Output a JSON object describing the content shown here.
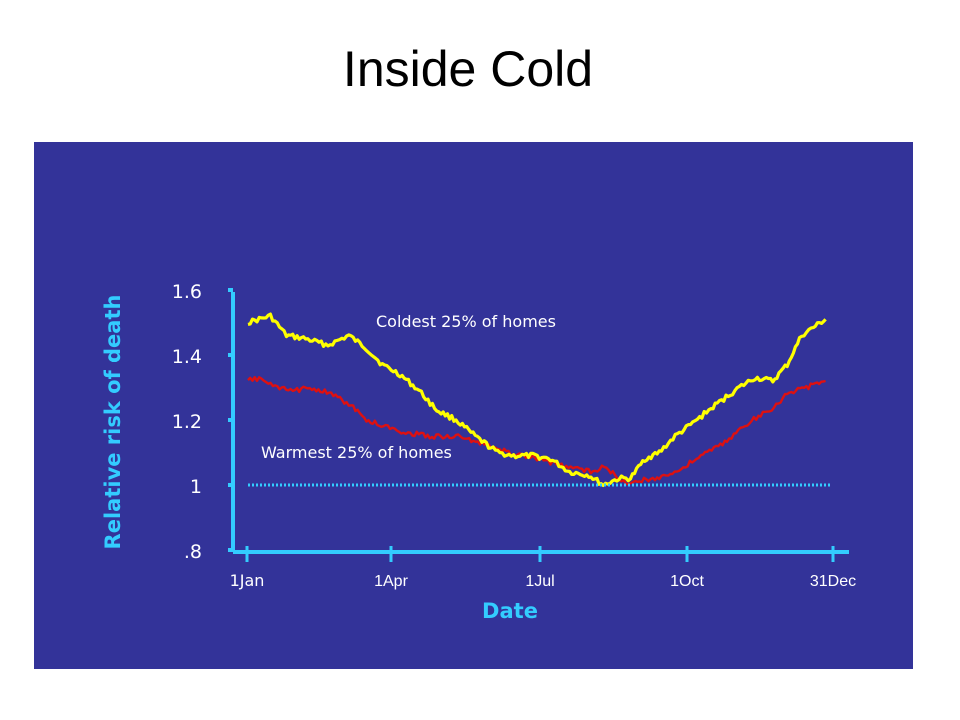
{
  "slide": {
    "title": "Inside Cold"
  },
  "colors": {
    "panel_bg": "#333399",
    "axis": "#33ccff",
    "coldest": "#ffff00",
    "warmest": "#dd1111",
    "baseline": "#33ccff",
    "text": "#ffffff"
  },
  "chart_data": {
    "type": "line",
    "title": "",
    "xlabel": "Date",
    "ylabel": "Relative risk of death",
    "ylim": [
      0.8,
      1.6
    ],
    "y_ticks": [
      0.8,
      1.0,
      1.2,
      1.4,
      1.6
    ],
    "y_tick_labels": [
      ".8",
      "1",
      "1.2",
      "1.4",
      "1.6"
    ],
    "x_ticks": [
      "2000-01-01",
      "2000-04-01",
      "2000-07-01",
      "2000-10-01",
      "2000-12-31"
    ],
    "x_tick_labels": [
      "1Jan",
      "1Apr",
      "1Jul",
      "1Oct",
      "31Dec"
    ],
    "xlim": [
      "2000-01-01",
      "2000-12-31"
    ],
    "grid": false,
    "series": [
      {
        "name": "Coldest 25% of homes",
        "style": "solid",
        "x": [
          "2000-01-01",
          "2000-01-15",
          "2000-01-25",
          "2000-02-06",
          "2000-02-20",
          "2000-03-04",
          "2000-03-15",
          "2000-03-25",
          "2000-04-05",
          "2000-04-17",
          "2000-04-28",
          "2000-05-10",
          "2000-05-22",
          "2000-06-05",
          "2000-06-15",
          "2000-06-27",
          "2000-07-08",
          "2000-07-20",
          "2000-08-01",
          "2000-08-10",
          "2000-08-20",
          "2000-08-27",
          "2000-09-05",
          "2000-09-14",
          "2000-09-24",
          "2000-10-05",
          "2000-10-15",
          "2000-10-23",
          "2000-11-03",
          "2000-11-13",
          "2000-11-24",
          "2000-12-03",
          "2000-12-12",
          "2000-12-18",
          "2000-12-27"
        ],
        "values": [
          1.5,
          1.52,
          1.46,
          1.45,
          1.43,
          1.46,
          1.42,
          1.37,
          1.34,
          1.29,
          1.23,
          1.2,
          1.15,
          1.1,
          1.09,
          1.09,
          1.08,
          1.04,
          1.03,
          1.0,
          1.02,
          1.02,
          1.08,
          1.1,
          1.15,
          1.19,
          1.23,
          1.26,
          1.3,
          1.33,
          1.32,
          1.37,
          1.46,
          1.48,
          1.51
        ]
      },
      {
        "name": "Warmest 25% of homes",
        "style": "solid",
        "x": [
          "2000-01-01",
          "2000-01-08",
          "2000-01-18",
          "2000-01-29",
          "2000-02-10",
          "2000-02-22",
          "2000-03-04",
          "2000-03-15",
          "2000-03-27",
          "2000-04-10",
          "2000-04-25",
          "2000-05-10",
          "2000-05-25",
          "2000-06-05",
          "2000-06-20",
          "2000-07-01",
          "2000-07-15",
          "2000-07-25",
          "2000-08-05",
          "2000-08-12",
          "2000-08-20",
          "2000-08-30",
          "2000-09-10",
          "2000-09-25",
          "2000-10-10",
          "2000-10-25",
          "2000-11-08",
          "2000-11-22",
          "2000-12-03",
          "2000-12-15",
          "2000-12-27"
        ],
        "values": [
          1.32,
          1.33,
          1.3,
          1.29,
          1.3,
          1.28,
          1.25,
          1.2,
          1.18,
          1.16,
          1.15,
          1.15,
          1.13,
          1.11,
          1.09,
          1.08,
          1.06,
          1.05,
          1.04,
          1.06,
          1.01,
          1.01,
          1.02,
          1.04,
          1.09,
          1.13,
          1.19,
          1.23,
          1.28,
          1.3,
          1.32
        ]
      },
      {
        "name": "",
        "style": "dotted",
        "x": [
          "2000-01-01",
          "2000-12-31"
        ],
        "values": [
          1.0,
          1.0
        ]
      }
    ],
    "annotations": [
      {
        "text": "Coldest 25% of homes",
        "series_index": 0
      },
      {
        "text": "Warmest 25% of homes",
        "series_index": 1
      }
    ]
  }
}
